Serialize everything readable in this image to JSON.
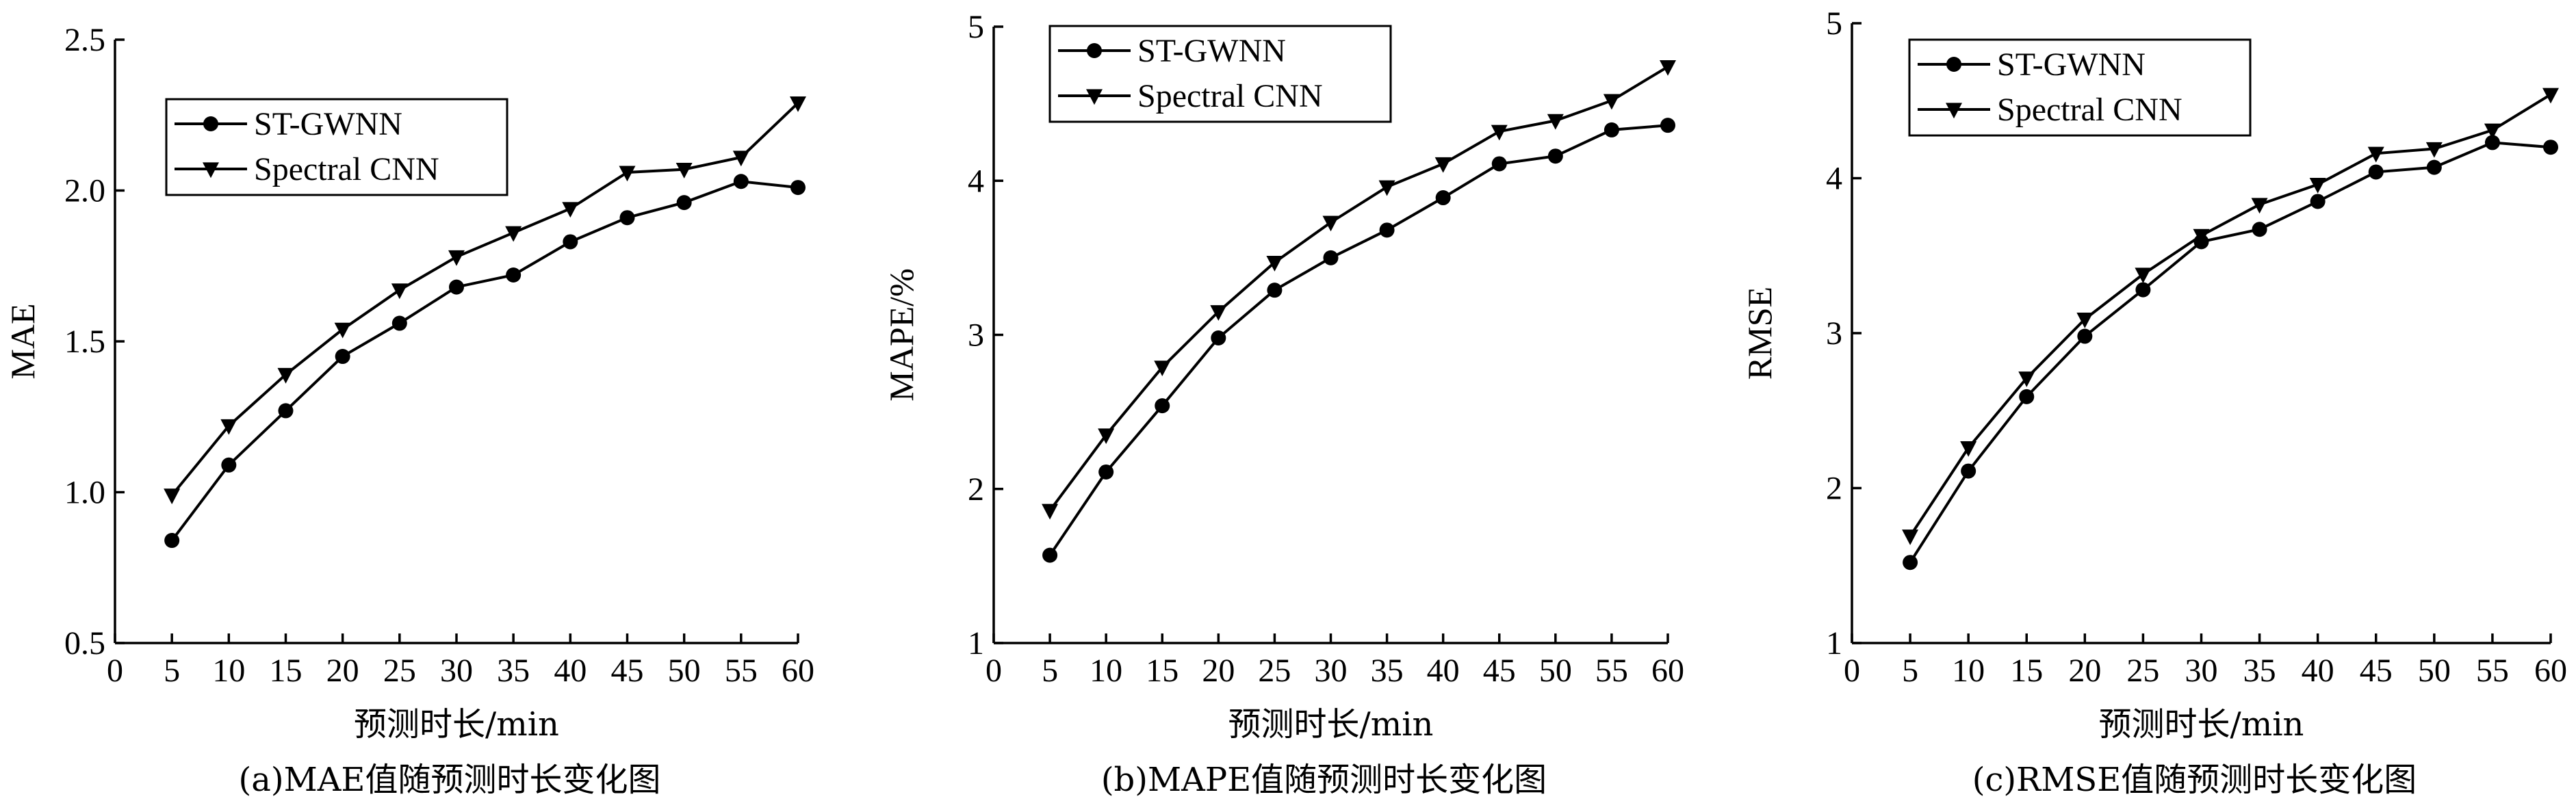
{
  "chart_data": [
    {
      "type": "line",
      "caption": "(a)MAE值随预测时长变化图",
      "xlabel": "预测时长/min",
      "ylabel": "MAE",
      "xlim": [
        0,
        60
      ],
      "ylim": [
        0.5,
        2.5
      ],
      "x_ticks": [
        "0",
        "5",
        "10",
        "15",
        "20",
        "25",
        "30",
        "35",
        "40",
        "45",
        "50",
        "55",
        "60"
      ],
      "y_ticks": [
        "0.5",
        "1.0",
        "1.5",
        "2.0",
        "2.5"
      ],
      "x": [
        5,
        10,
        15,
        20,
        25,
        30,
        35,
        40,
        45,
        50,
        55,
        60
      ],
      "legend_position": "top-left",
      "series": [
        {
          "name": "ST-GWNN",
          "marker": "circle",
          "values": [
            0.84,
            1.09,
            1.27,
            1.45,
            1.56,
            1.68,
            1.72,
            1.83,
            1.91,
            1.96,
            2.03,
            2.01
          ]
        },
        {
          "name": "Spectral CNN",
          "marker": "triangle-down",
          "values": [
            0.99,
            1.22,
            1.39,
            1.54,
            1.67,
            1.78,
            1.86,
            1.94,
            2.06,
            2.07,
            2.11,
            2.29
          ]
        }
      ]
    },
    {
      "type": "line",
      "caption": "(b)MAPE值随预测时长变化图",
      "xlabel": "预测时长/min",
      "ylabel": "MAPE/%",
      "xlim": [
        0,
        60
      ],
      "ylim": [
        1,
        5
      ],
      "x_ticks": [
        "0",
        "5",
        "10",
        "15",
        "20",
        "25",
        "30",
        "35",
        "40",
        "45",
        "50",
        "55",
        "60"
      ],
      "y_ticks": [
        "1",
        "2",
        "3",
        "4",
        "5"
      ],
      "x": [
        5,
        10,
        15,
        20,
        25,
        30,
        35,
        40,
        45,
        50,
        55,
        60
      ],
      "legend_position": "top-left",
      "series": [
        {
          "name": "ST-GWNN",
          "marker": "circle",
          "values": [
            1.57,
            2.11,
            2.54,
            2.98,
            3.29,
            3.5,
            3.68,
            3.89,
            4.11,
            4.16,
            4.33,
            4.36
          ]
        },
        {
          "name": "Spectral CNN",
          "marker": "triangle-down",
          "values": [
            1.86,
            2.35,
            2.79,
            3.15,
            3.47,
            3.73,
            3.96,
            4.11,
            4.32,
            4.39,
            4.52,
            4.74
          ]
        }
      ]
    },
    {
      "type": "line",
      "caption": "(c)RMSE值随预测时长变化图",
      "xlabel": "预测时长/min",
      "ylabel": "RMSE",
      "xlim": [
        0,
        60
      ],
      "ylim": [
        1,
        5
      ],
      "x_ticks": [
        "0",
        "5",
        "10",
        "15",
        "20",
        "25",
        "30",
        "35",
        "40",
        "45",
        "50",
        "55",
        "60"
      ],
      "y_ticks": [
        "1",
        "2",
        "3",
        "4",
        "5"
      ],
      "x": [
        5,
        10,
        15,
        20,
        25,
        30,
        35,
        40,
        45,
        50,
        55,
        60
      ],
      "legend_position": "top-left",
      "series": [
        {
          "name": "ST-GWNN",
          "marker": "circle",
          "values": [
            1.52,
            2.11,
            2.59,
            2.98,
            3.28,
            3.59,
            3.67,
            3.85,
            4.04,
            4.07,
            4.23,
            4.2
          ]
        },
        {
          "name": "Spectral CNN",
          "marker": "triangle-down",
          "values": [
            1.69,
            2.26,
            2.71,
            3.09,
            3.38,
            3.63,
            3.83,
            3.96,
            4.16,
            4.19,
            4.31,
            4.54
          ]
        }
      ]
    }
  ]
}
